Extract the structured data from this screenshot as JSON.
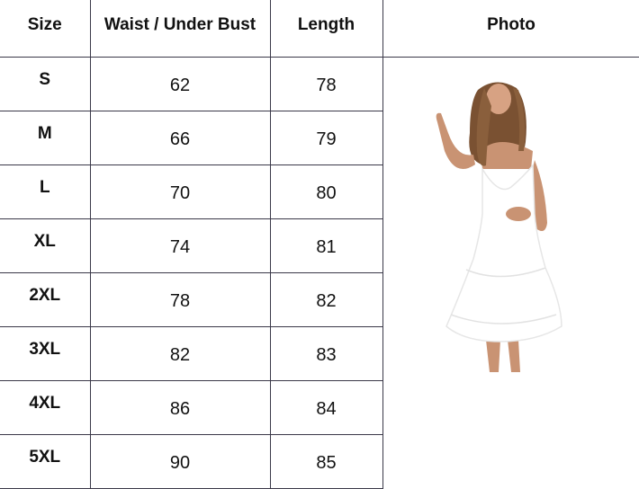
{
  "headers": {
    "size": "Size",
    "waist": "Waist / Under Bust",
    "length": "Length",
    "photo": "Photo"
  },
  "rows": [
    {
      "size": "S",
      "waist": "62",
      "length": "78"
    },
    {
      "size": "M",
      "waist": "66",
      "length": "79"
    },
    {
      "size": "L",
      "waist": "70",
      "length": "80"
    },
    {
      "size": "XL",
      "waist": "74",
      "length": "81"
    },
    {
      "size": "2XL",
      "waist": "78",
      "length": "82"
    },
    {
      "size": "3XL",
      "waist": "82",
      "length": "83"
    },
    {
      "size": "4XL",
      "waist": "86",
      "length": "84"
    },
    {
      "size": "5XL",
      "waist": "90",
      "length": "85"
    }
  ],
  "colors": {
    "border": "#3a3848",
    "dress": "#ffffff",
    "skin": "#c99373",
    "hair": "#7a5132"
  }
}
